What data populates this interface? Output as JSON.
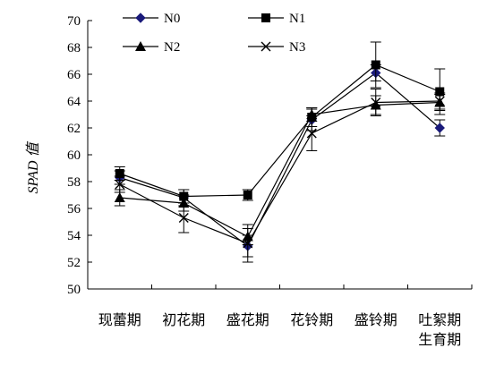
{
  "chart_data": {
    "type": "line",
    "ylabel": "SPAD 值",
    "ylim": [
      50,
      70
    ],
    "yticks": [
      50,
      52,
      54,
      56,
      58,
      60,
      62,
      64,
      66,
      68,
      70
    ],
    "categories": [
      "现蕾期",
      "初花期",
      "盛花期",
      "花铃期",
      "盛铃期",
      "吐絮期\n生育期"
    ],
    "legend_placement": "top",
    "grid": false,
    "series": [
      {
        "name": "N0",
        "marker": "diamond",
        "color": "#1a1a7a",
        "values": [
          58.3,
          56.8,
          53.2,
          62.6,
          66.1,
          62.0
        ],
        "errors": [
          0.5,
          0.6,
          0.8,
          0.8,
          0.6,
          0.6
        ]
      },
      {
        "name": "N1",
        "marker": "square",
        "color": "#000000",
        "values": [
          58.6,
          56.9,
          57.0,
          62.8,
          66.7,
          64.7
        ],
        "errors": [
          0.5,
          0.5,
          0.4,
          0.7,
          1.7,
          1.7
        ]
      },
      {
        "name": "N2",
        "marker": "triangle",
        "color": "#000000",
        "values": [
          56.8,
          56.4,
          53.9,
          63.0,
          63.7,
          63.9
        ],
        "errors": [
          0.6,
          0.6,
          0.6,
          0.5,
          0.7,
          0.6
        ]
      },
      {
        "name": "N3",
        "marker": "x",
        "color": "#000000",
        "values": [
          57.8,
          55.3,
          53.4,
          61.6,
          63.9,
          64.0
        ],
        "errors": [
          0.6,
          1.1,
          1.4,
          1.3,
          1.0,
          0.6
        ]
      }
    ]
  }
}
